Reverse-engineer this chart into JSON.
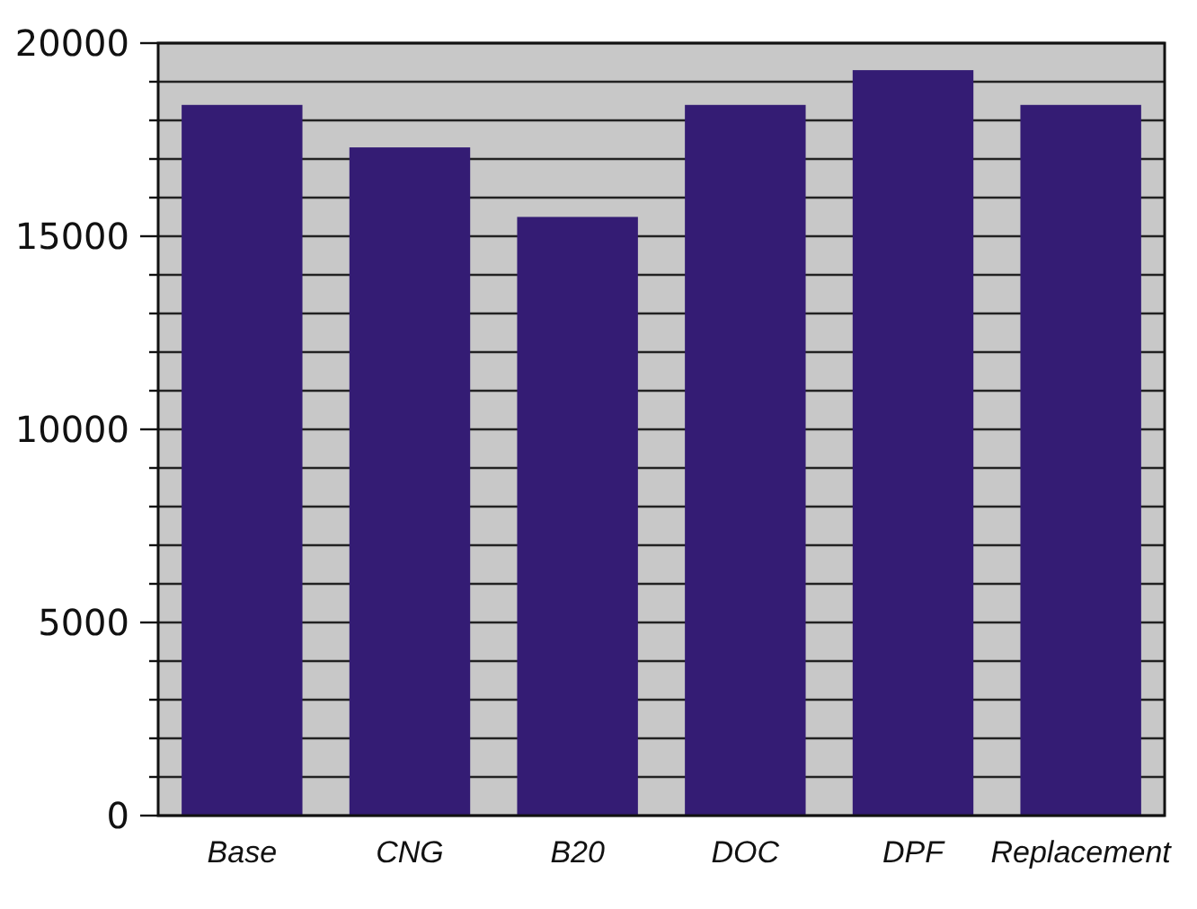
{
  "chart_data": {
    "type": "bar",
    "categories": [
      "Base",
      "CNG",
      "B20",
      "DOC",
      "DPF",
      "Replacement"
    ],
    "values": [
      18400,
      17300,
      15500,
      18400,
      19300,
      18400
    ],
    "color": "#341c74",
    "ylim": [
      0,
      20000
    ],
    "yticks": [
      0,
      {
        "value": 1000,
        "label": null
      },
      {
        "value": 2000,
        "label": null
      },
      {
        "value": 3000,
        "label": null
      },
      {
        "value": 4000,
        "label": null
      },
      5000,
      {
        "value": 6000,
        "label": null
      },
      {
        "value": 7000,
        "label": null
      },
      {
        "value": 8000,
        "label": null
      },
      {
        "value": 9000,
        "label": null
      },
      10000,
      {
        "value": 11000,
        "label": null
      },
      {
        "value": 12000,
        "label": null
      },
      {
        "value": 13000,
        "label": null
      },
      {
        "value": 14000,
        "label": null
      },
      15000,
      {
        "value": 16000,
        "label": null
      },
      {
        "value": 17000,
        "label": null
      },
      {
        "value": 18000,
        "label": null
      },
      {
        "value": 19000,
        "label": null
      },
      20000
    ],
    "grid": true
  }
}
